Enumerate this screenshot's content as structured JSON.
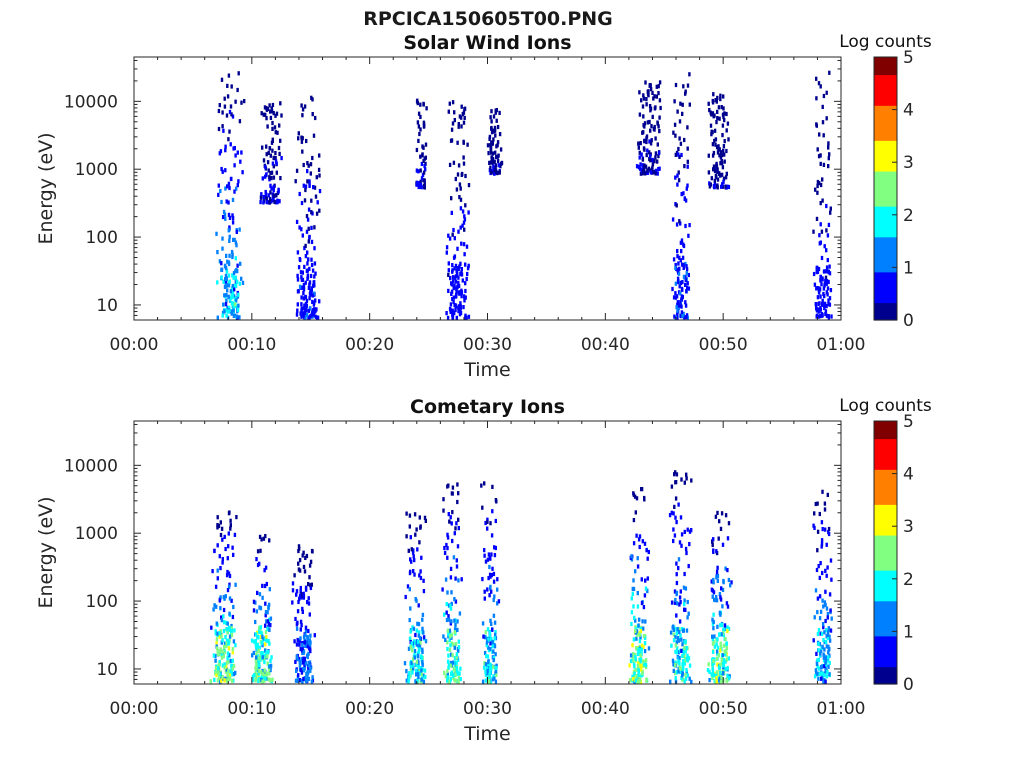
{
  "figure": {
    "filename": "RPCICA150605T00.PNG"
  },
  "colors": {
    "colormap": [
      "#00008f",
      "#0000ff",
      "#0080ff",
      "#00ffff",
      "#80ff80",
      "#ffff00",
      "#ff8000",
      "#ff0000",
      "#800000"
    ]
  },
  "chart_data": [
    {
      "type": "heatmap",
      "title": "Solar Wind Ions",
      "xlabel": "Time",
      "ylabel": "Energy (eV)",
      "y_scale": "log",
      "xlim": [
        "00:00",
        "01:00"
      ],
      "ylim": [
        6,
        45000
      ],
      "x_ticks": [
        "00:00",
        "00:10",
        "00:20",
        "00:30",
        "00:40",
        "00:50",
        "01:00"
      ],
      "y_ticks": [
        "10",
        "100",
        "1000",
        "10000"
      ],
      "colorbar": {
        "label": "Log counts",
        "range": [
          0,
          5
        ],
        "ticks": [
          "0",
          "1",
          "2",
          "3",
          "4",
          "5"
        ]
      },
      "time_unit": "minutes after 00:00",
      "bursts": [
        {
          "time_range": [
            6.8,
            9.3
          ],
          "energy_range": [
            6,
            25000
          ],
          "max_log_counts": 2.2
        },
        {
          "time_range": [
            10.5,
            12.5
          ],
          "energy_range": [
            300,
            10000
          ],
          "max_log_counts": 0.6
        },
        {
          "time_range": [
            13.5,
            15.8
          ],
          "energy_range": [
            6,
            12000
          ],
          "max_log_counts": 1.0
        },
        {
          "time_range": [
            23.8,
            24.8
          ],
          "energy_range": [
            500,
            10000
          ],
          "max_log_counts": 0.5
        },
        {
          "time_range": [
            26.3,
            28.5
          ],
          "energy_range": [
            6,
            12000
          ],
          "max_log_counts": 0.9
        },
        {
          "time_range": [
            29.8,
            31.2
          ],
          "energy_range": [
            800,
            8000
          ],
          "max_log_counts": 0.4
        },
        {
          "time_range": [
            42.5,
            44.8
          ],
          "energy_range": [
            800,
            18000
          ],
          "max_log_counts": 0.5
        },
        {
          "time_range": [
            45.5,
            47.2
          ],
          "energy_range": [
            6,
            28000
          ],
          "max_log_counts": 1.2
        },
        {
          "time_range": [
            48.5,
            50.5
          ],
          "energy_range": [
            500,
            12000
          ],
          "max_log_counts": 0.4
        },
        {
          "time_range": [
            57.5,
            59.2
          ],
          "energy_range": [
            6,
            25000
          ],
          "max_log_counts": 0.8
        }
      ]
    },
    {
      "type": "heatmap",
      "title": "Cometary Ions",
      "xlabel": "Time",
      "ylabel": "Energy (eV)",
      "y_scale": "log",
      "xlim": [
        "00:00",
        "01:00"
      ],
      "ylim": [
        6,
        45000
      ],
      "x_ticks": [
        "00:00",
        "00:10",
        "00:20",
        "00:30",
        "00:40",
        "00:50",
        "01:00"
      ],
      "y_ticks": [
        "10",
        "100",
        "1000",
        "10000"
      ],
      "colorbar": {
        "label": "Log counts",
        "range": [
          0,
          5
        ],
        "ticks": [
          "0",
          "1",
          "2",
          "3",
          "4",
          "5"
        ]
      },
      "time_unit": "minutes after 00:00",
      "bursts": [
        {
          "time_range": [
            6.3,
            8.8
          ],
          "energy_range": [
            6,
            2000
          ],
          "max_log_counts": 3.0
        },
        {
          "time_range": [
            9.8,
            11.8
          ],
          "energy_range": [
            6,
            1100
          ],
          "max_log_counts": 3.0
        },
        {
          "time_range": [
            13.3,
            15.3
          ],
          "energy_range": [
            6,
            600
          ],
          "max_log_counts": 1.5
        },
        {
          "time_range": [
            22.8,
            24.8
          ],
          "energy_range": [
            6,
            2000
          ],
          "max_log_counts": 2.5
        },
        {
          "time_range": [
            26.0,
            27.8
          ],
          "energy_range": [
            6,
            5000
          ],
          "max_log_counts": 2.8
        },
        {
          "time_range": [
            29.3,
            31.0
          ],
          "energy_range": [
            6,
            6000
          ],
          "max_log_counts": 2.3
        },
        {
          "time_range": [
            41.8,
            43.8
          ],
          "energy_range": [
            6,
            4500
          ],
          "max_log_counts": 3.2
        },
        {
          "time_range": [
            45.3,
            47.3
          ],
          "energy_range": [
            6,
            10000
          ],
          "max_log_counts": 2.5
        },
        {
          "time_range": [
            48.5,
            50.8
          ],
          "energy_range": [
            6,
            2000
          ],
          "max_log_counts": 3.0
        },
        {
          "time_range": [
            57.5,
            59.3
          ],
          "energy_range": [
            6,
            4000
          ],
          "max_log_counts": 2.2
        }
      ]
    }
  ]
}
